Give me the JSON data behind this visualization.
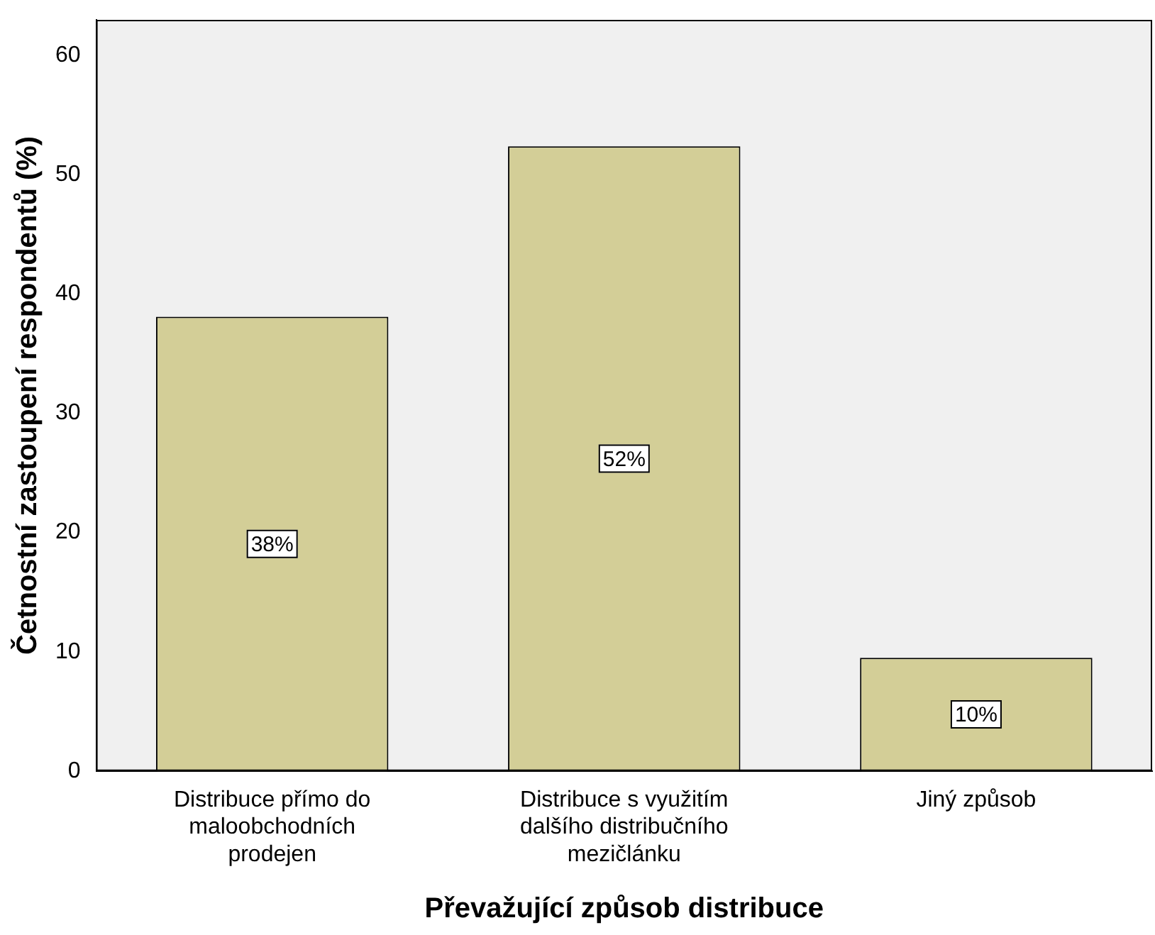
{
  "chart_data": {
    "type": "bar",
    "xlabel": "Převažující způsob distribuce",
    "ylabel": "Četnostní zastoupení respondentů (%)",
    "categories": [
      "Distribuce přímo do maloobchodních prodejen",
      "Distribuce s využitím dalšího distribučního mezičlánku",
      "Jiný způsob"
    ],
    "values": [
      38.1,
      52.4,
      9.5
    ],
    "value_labels": [
      "38%",
      "52%",
      "10%"
    ],
    "color": "#d3ce97",
    "ylim": [
      0,
      63
    ],
    "yticks": [
      0,
      10,
      20,
      30,
      40,
      50,
      60
    ],
    "grid": false,
    "legend": false
  }
}
